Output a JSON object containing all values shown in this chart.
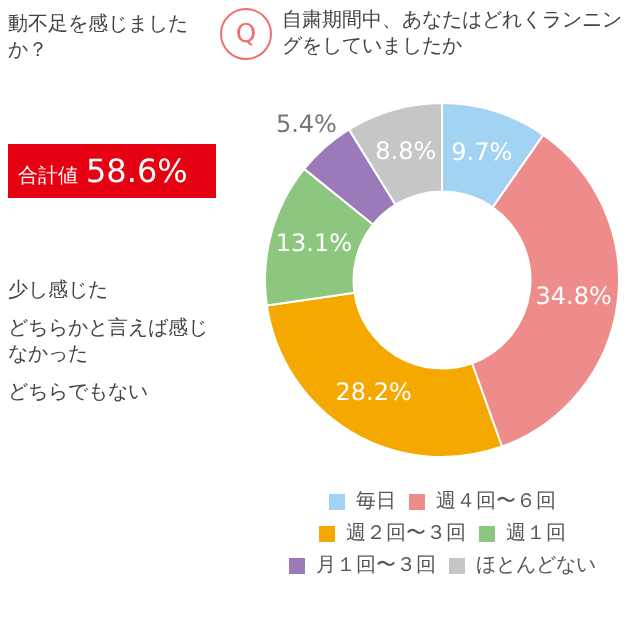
{
  "chart_data": [
    {
      "type": "other",
      "title": "動不足を感じましたか？",
      "annotations": [
        "合計値",
        "58.6%",
        "少し感じた",
        "どちらかと言えば感じなかった",
        "どちらでもない"
      ]
    },
    {
      "type": "donut",
      "title": "自粛期間中、あなたはどれくランニングをしていましたか",
      "annotations": [
        "Q"
      ],
      "categories": [
        "毎日",
        "週４回〜６回",
        "週２回〜３回",
        "週１回",
        "月１回〜３回",
        "ほとんどない"
      ],
      "values": [
        9.7,
        34.8,
        28.2,
        13.1,
        5.4,
        8.8
      ],
      "value_labels": [
        "9.7%",
        "34.8%",
        "28.2%",
        "13.1%",
        "5.4%",
        "8.8%"
      ],
      "colors": [
        "#a3d3f2",
        "#ee8c8c",
        "#f5a900",
        "#8dc67f",
        "#9c79b9",
        "#c6c6c6"
      ],
      "legend": "bottom"
    }
  ]
}
